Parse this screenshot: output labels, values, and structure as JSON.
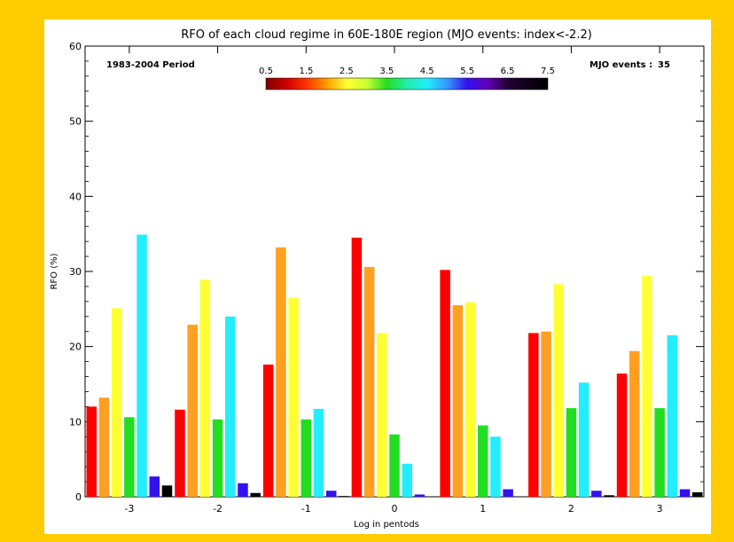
{
  "chart_data": {
    "type": "bar",
    "title": "RFO of each cloud regime in 60E-180E region (MJO events: index<-2.2)",
    "xlabel": "Log in pentods",
    "ylabel": "RFO (%)",
    "ylim": [
      0,
      60
    ],
    "yticks": [
      "0",
      "10",
      "20",
      "30",
      "40",
      "50",
      "60"
    ],
    "categories": [
      "-3",
      "-2",
      "-1",
      "0",
      "1",
      "2",
      "3"
    ],
    "period_label": "1983-2004 Period",
    "events_label": "MJO events :",
    "events_count": "35",
    "colorbar_ticks": [
      "0.5",
      "1.5",
      "2.5",
      "3.5",
      "4.5",
      "5.5",
      "6.5",
      "7.5"
    ],
    "legend_placement": "top-center",
    "grid": false,
    "series": [
      {
        "color": "#FF0000",
        "values": [
          12.0,
          11.6,
          17.6,
          34.5,
          30.2,
          21.8,
          16.4
        ]
      },
      {
        "color": "#FFA020",
        "values": [
          13.2,
          22.9,
          33.2,
          30.6,
          25.5,
          22.0,
          19.4
        ]
      },
      {
        "color": "#FFFF33",
        "values": [
          25.1,
          28.9,
          26.5,
          21.8,
          25.9,
          28.3,
          29.4
        ]
      },
      {
        "color": "#22DD22",
        "values": [
          10.6,
          10.3,
          10.3,
          8.3,
          9.5,
          11.8,
          11.8
        ]
      },
      {
        "color": "#22EEFF",
        "values": [
          34.9,
          24.0,
          11.7,
          4.4,
          8.0,
          15.2,
          21.5
        ]
      },
      {
        "color": "#3311EE",
        "values": [
          2.7,
          1.8,
          0.8,
          0.3,
          1.0,
          0.8,
          1.0
        ]
      },
      {
        "color": "#000000",
        "values": [
          1.5,
          0.5,
          0.1,
          0.0,
          0.0,
          0.2,
          0.6
        ]
      }
    ]
  }
}
